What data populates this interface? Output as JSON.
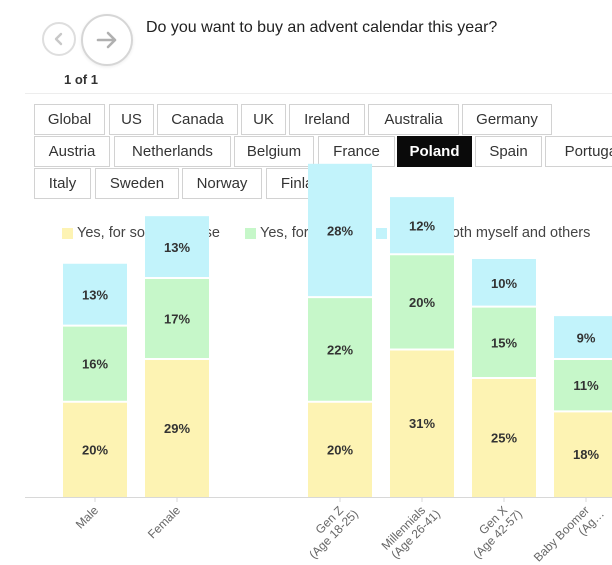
{
  "header": {
    "prev_icon": "chevron-left-icon",
    "next_icon": "chevron-right-icon",
    "question": "Do you want to buy an advent calendar this year?",
    "pager": "1 of 1"
  },
  "tabs": [
    {
      "label": "Global",
      "active": false
    },
    {
      "label": "US",
      "active": false
    },
    {
      "label": "Canada",
      "active": false
    },
    {
      "label": "UK",
      "active": false
    },
    {
      "label": "Ireland",
      "active": false
    },
    {
      "label": "Australia",
      "active": false
    },
    {
      "label": "Germany",
      "active": false
    },
    {
      "label": "Austria",
      "active": false
    },
    {
      "label": "Netherlands",
      "active": false
    },
    {
      "label": "Belgium",
      "active": false
    },
    {
      "label": "France",
      "active": false
    },
    {
      "label": "Poland",
      "active": true
    },
    {
      "label": "Spain",
      "active": false
    },
    {
      "label": "Portugal",
      "active": false
    },
    {
      "label": "Italy",
      "active": false
    },
    {
      "label": "Sweden",
      "active": false
    },
    {
      "label": "Norway",
      "active": false
    },
    {
      "label": "Finland",
      "active": false
    }
  ],
  "chart_data": {
    "type": "bar",
    "stacked": true,
    "categories": [
      "Male",
      "Female",
      "",
      "Gen Z (Age 18-25)",
      "Millennials (Age 26-41)",
      "Gen X (Age 42-57)",
      "Baby Boomer (Ag…"
    ],
    "series": [
      {
        "name": "Yes, for someone else",
        "color": "#fdf3b3",
        "values": [
          20,
          29,
          null,
          20,
          31,
          25,
          18
        ]
      },
      {
        "name": "Yes, for myself",
        "color": "#c6f7c9",
        "values": [
          16,
          17,
          null,
          22,
          20,
          15,
          11
        ]
      },
      {
        "name": "Yes, for both myself and others",
        "color": "#c2f3fb",
        "values": [
          13,
          13,
          null,
          28,
          12,
          10,
          9
        ]
      }
    ],
    "legend": "top",
    "grid": false
  }
}
